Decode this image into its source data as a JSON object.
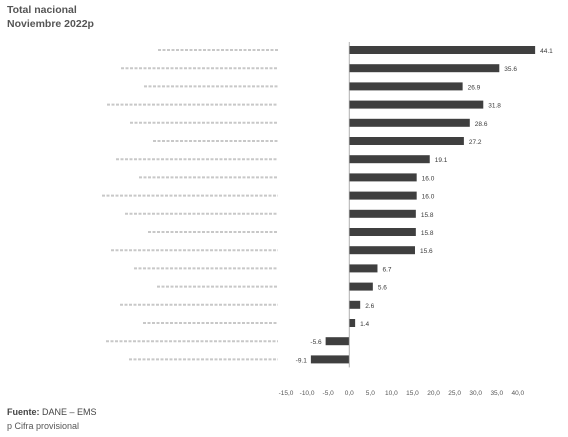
{
  "header": {
    "title": "Total nacional",
    "subtitle": "Noviembre 2022p"
  },
  "footer": {
    "source_label": "Fuente:",
    "source_value": "DANE – EMS",
    "note": "p Cifra provisional"
  },
  "chart_data": {
    "type": "bar",
    "orientation": "horizontal",
    "title": "Total nacional",
    "subtitle": "Noviembre 2022p",
    "categories": [
      "",
      "",
      "",
      "",
      "",
      "",
      "",
      "",
      "",
      "",
      "",
      "",
      "",
      "",
      "",
      "",
      "",
      ""
    ],
    "values": [
      44.1,
      35.6,
      26.9,
      31.8,
      28.6,
      27.2,
      19.1,
      16.0,
      16.0,
      15.8,
      15.8,
      15.6,
      6.7,
      5.6,
      2.6,
      1.4,
      -5.6,
      -9.1
    ],
    "data_labels": [
      "44.1",
      "35.6",
      "26.9",
      "31.8",
      "28.6",
      "27.2",
      "19.1",
      "16.0",
      "16.0",
      "15.8",
      "15.8",
      "15.6",
      "6.7",
      "5.6",
      "2.6",
      "1.4",
      "-5.6",
      "-9.1"
    ],
    "xlim": [
      -15,
      50
    ],
    "xticks": [
      -15,
      -10,
      -5,
      0,
      5,
      10,
      15,
      20,
      25,
      30,
      35,
      40
    ],
    "xtick_labels": [
      "-15,0",
      "-10,0",
      "-5,0",
      "0,0",
      "5,0",
      "10,0",
      "15,0",
      "20,0",
      "25,0",
      "30,0",
      "35,0",
      "40,0"
    ],
    "bar_color": "#3f3f3f",
    "grid": false,
    "legend": "none"
  }
}
